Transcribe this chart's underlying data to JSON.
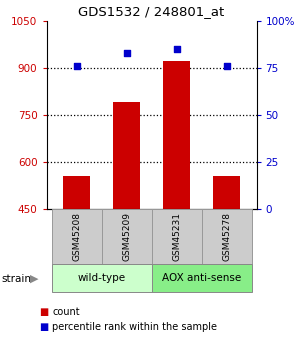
{
  "title": "GDS1532 / 248801_at",
  "samples": [
    "GSM45208",
    "GSM45209",
    "GSM45231",
    "GSM45278"
  ],
  "bar_values": [
    555,
    790,
    920,
    555
  ],
  "percentile_values": [
    76,
    83,
    85,
    76
  ],
  "bar_color": "#cc0000",
  "dot_color": "#0000cc",
  "ylim_left": [
    450,
    1050
  ],
  "ylim_right": [
    0,
    100
  ],
  "yticks_left": [
    450,
    600,
    750,
    900,
    1050
  ],
  "yticks_right": [
    0,
    25,
    50,
    75,
    100
  ],
  "ytick_labels_right": [
    "0",
    "25",
    "50",
    "75",
    "100%"
  ],
  "grid_values": [
    600,
    750,
    900
  ],
  "groups": [
    {
      "label": "wild-type",
      "samples": [
        0,
        1
      ],
      "color": "#ccffcc"
    },
    {
      "label": "AOX anti-sense",
      "samples": [
        2,
        3
      ],
      "color": "#88ee88"
    }
  ],
  "strain_label": "strain",
  "legend_count_label": "count",
  "legend_pct_label": "percentile rank within the sample",
  "bar_width": 0.55,
  "left_tick_color": "#cc0000",
  "right_tick_color": "#0000cc",
  "sample_box_color": "#cccccc",
  "sample_box_edge": "#999999",
  "group_box_edge": "#888888"
}
